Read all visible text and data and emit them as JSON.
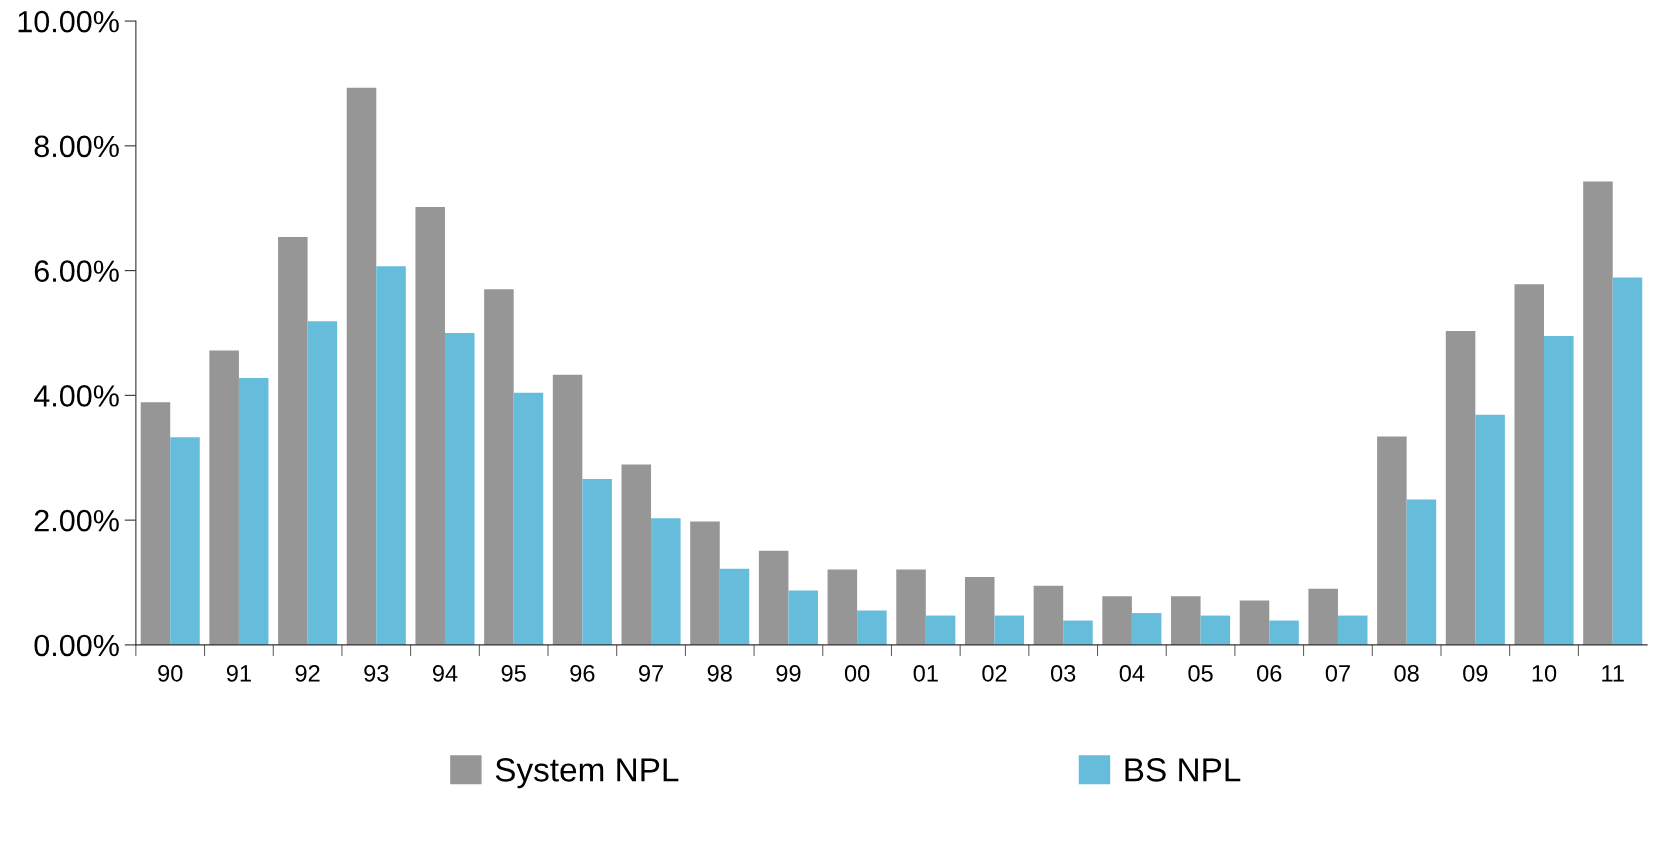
{
  "chart_data": {
    "type": "bar",
    "categories": [
      "90",
      "91",
      "92",
      "93",
      "94",
      "95",
      "96",
      "97",
      "98",
      "99",
      "00",
      "01",
      "02",
      "03",
      "04",
      "05",
      "06",
      "07",
      "08",
      "09",
      "10",
      "11"
    ],
    "series": [
      {
        "name": "System NPL",
        "color": "#969696",
        "values": [
          3.89,
          4.72,
          6.54,
          8.93,
          7.02,
          5.7,
          4.33,
          2.89,
          1.98,
          1.51,
          1.21,
          1.21,
          1.09,
          0.95,
          0.78,
          0.78,
          0.71,
          0.9,
          3.34,
          5.03,
          5.78,
          7.43
        ]
      },
      {
        "name": "BS NPL",
        "color": "#65bcdb",
        "values": [
          3.33,
          4.28,
          5.19,
          6.07,
          5.0,
          4.04,
          2.66,
          2.03,
          1.22,
          0.87,
          0.55,
          0.47,
          0.47,
          0.39,
          0.51,
          0.47,
          0.39,
          0.47,
          2.33,
          3.69,
          4.95,
          5.89
        ]
      }
    ],
    "ylim": [
      0,
      10
    ],
    "yticks": [
      {
        "value": 0,
        "label": "0.00%"
      },
      {
        "value": 2,
        "label": "2.00%"
      },
      {
        "value": 4,
        "label": "4.00%"
      },
      {
        "value": 6,
        "label": "6.00%"
      },
      {
        "value": 8,
        "label": "8.00%"
      },
      {
        "value": 10,
        "label": "10.00%"
      }
    ],
    "grid": false,
    "legend": "bottom"
  }
}
